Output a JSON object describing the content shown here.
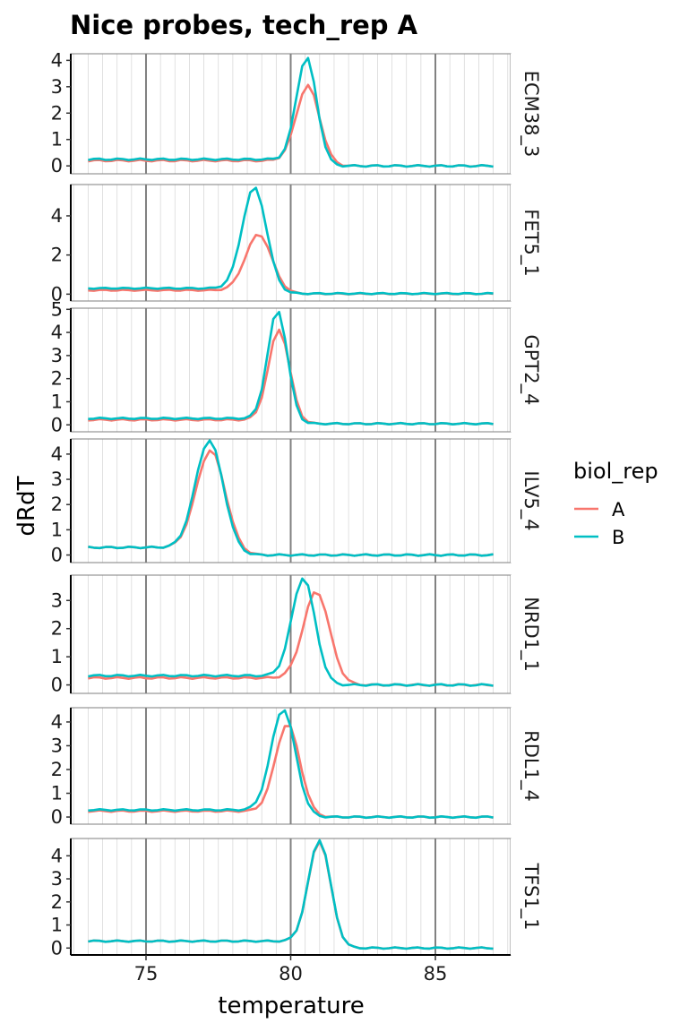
{
  "chart_data": {
    "type": "line",
    "title": "Nice probes, tech_rep A",
    "xlabel": "temperature",
    "ylabel": "dRdT",
    "xlim": [
      72.4,
      87.6
    ],
    "x_major_ticks": [
      75,
      80,
      85
    ],
    "x_minor_step": 0.5,
    "legend": {
      "title": "biol_rep",
      "position": "right",
      "entries": [
        {
          "name": "A",
          "color": "#F8766D"
        },
        {
          "name": "B",
          "color": "#00BFC4"
        }
      ]
    },
    "x_range": [
      73,
      87
    ],
    "x_step": 0.2,
    "panels": [
      {
        "label": "ECM38_3",
        "ylim": [
          -0.3,
          4.25
        ],
        "yticks": [
          0,
          1,
          2,
          3,
          4
        ],
        "series": [
          {
            "name": "A",
            "color": "#F8766D",
            "baseline": 0.2,
            "tail": 0.0,
            "center": 80.6,
            "width": 0.4,
            "peak": 2.95
          },
          {
            "name": "B",
            "color": "#00BFC4",
            "baseline": 0.25,
            "tail": 0.0,
            "center": 80.55,
            "width": 0.35,
            "peak": 4.0
          }
        ]
      },
      {
        "label": "FET5_1",
        "ylim": [
          -0.35,
          5.6
        ],
        "yticks": [
          0,
          2,
          4
        ],
        "series": [
          {
            "name": "A",
            "color": "#F8766D",
            "baseline": 0.2,
            "tail": 0.02,
            "center": 78.9,
            "width": 0.45,
            "peak": 2.95
          },
          {
            "name": "B",
            "color": "#00BFC4",
            "baseline": 0.3,
            "tail": 0.03,
            "center": 78.75,
            "width": 0.42,
            "peak": 5.3
          }
        ]
      },
      {
        "label": "GPT2_4",
        "ylim": [
          -0.3,
          5.05
        ],
        "yticks": [
          0,
          1,
          2,
          3,
          4,
          5
        ],
        "series": [
          {
            "name": "A",
            "color": "#F8766D",
            "baseline": 0.22,
            "tail": 0.05,
            "center": 79.6,
            "width": 0.36,
            "peak": 4.0
          },
          {
            "name": "B",
            "color": "#00BFC4",
            "baseline": 0.28,
            "tail": 0.05,
            "center": 79.55,
            "width": 0.34,
            "peak": 4.8
          }
        ]
      },
      {
        "label": "ILV5_4",
        "ylim": [
          -0.3,
          4.6
        ],
        "yticks": [
          0,
          1,
          2,
          3,
          4
        ],
        "series": [
          {
            "name": "A",
            "color": "#F8766D",
            "baseline": 0.3,
            "tail": 0.0,
            "center": 77.25,
            "width": 0.5,
            "peak": 4.0
          },
          {
            "name": "B",
            "color": "#00BFC4",
            "baseline": 0.3,
            "tail": 0.0,
            "center": 77.2,
            "width": 0.48,
            "peak": 4.4
          }
        ]
      },
      {
        "label": "NRD1_1",
        "ylim": [
          -0.3,
          3.9
        ],
        "yticks": [
          0,
          1,
          2,
          3
        ],
        "series": [
          {
            "name": "A",
            "color": "#F8766D",
            "baseline": 0.25,
            "tail": 0.0,
            "center": 80.9,
            "width": 0.45,
            "peak": 3.2
          },
          {
            "name": "B",
            "color": "#00BFC4",
            "baseline": 0.33,
            "tail": 0.0,
            "center": 80.45,
            "width": 0.4,
            "peak": 3.65
          }
        ]
      },
      {
        "label": "RDL1_4",
        "ylim": [
          -0.3,
          4.6
        ],
        "yticks": [
          0,
          1,
          2,
          3,
          4
        ],
        "series": [
          {
            "name": "A",
            "color": "#F8766D",
            "baseline": 0.25,
            "tail": 0.0,
            "center": 79.9,
            "width": 0.42,
            "peak": 3.8
          },
          {
            "name": "B",
            "color": "#00BFC4",
            "baseline": 0.3,
            "tail": 0.0,
            "center": 79.75,
            "width": 0.42,
            "peak": 4.4
          }
        ]
      },
      {
        "label": "TFS1_1",
        "ylim": [
          -0.3,
          4.75
        ],
        "yticks": [
          0,
          1,
          2,
          3,
          4
        ],
        "series": [
          {
            "name": "A",
            "color": "#F8766D",
            "baseline": 0.3,
            "tail": 0.0,
            "center": 81.0,
            "width": 0.38,
            "peak": 4.5
          },
          {
            "name": "B",
            "color": "#00BFC4",
            "baseline": 0.3,
            "tail": 0.0,
            "center": 81.0,
            "width": 0.38,
            "peak": 4.55
          }
        ]
      }
    ]
  }
}
